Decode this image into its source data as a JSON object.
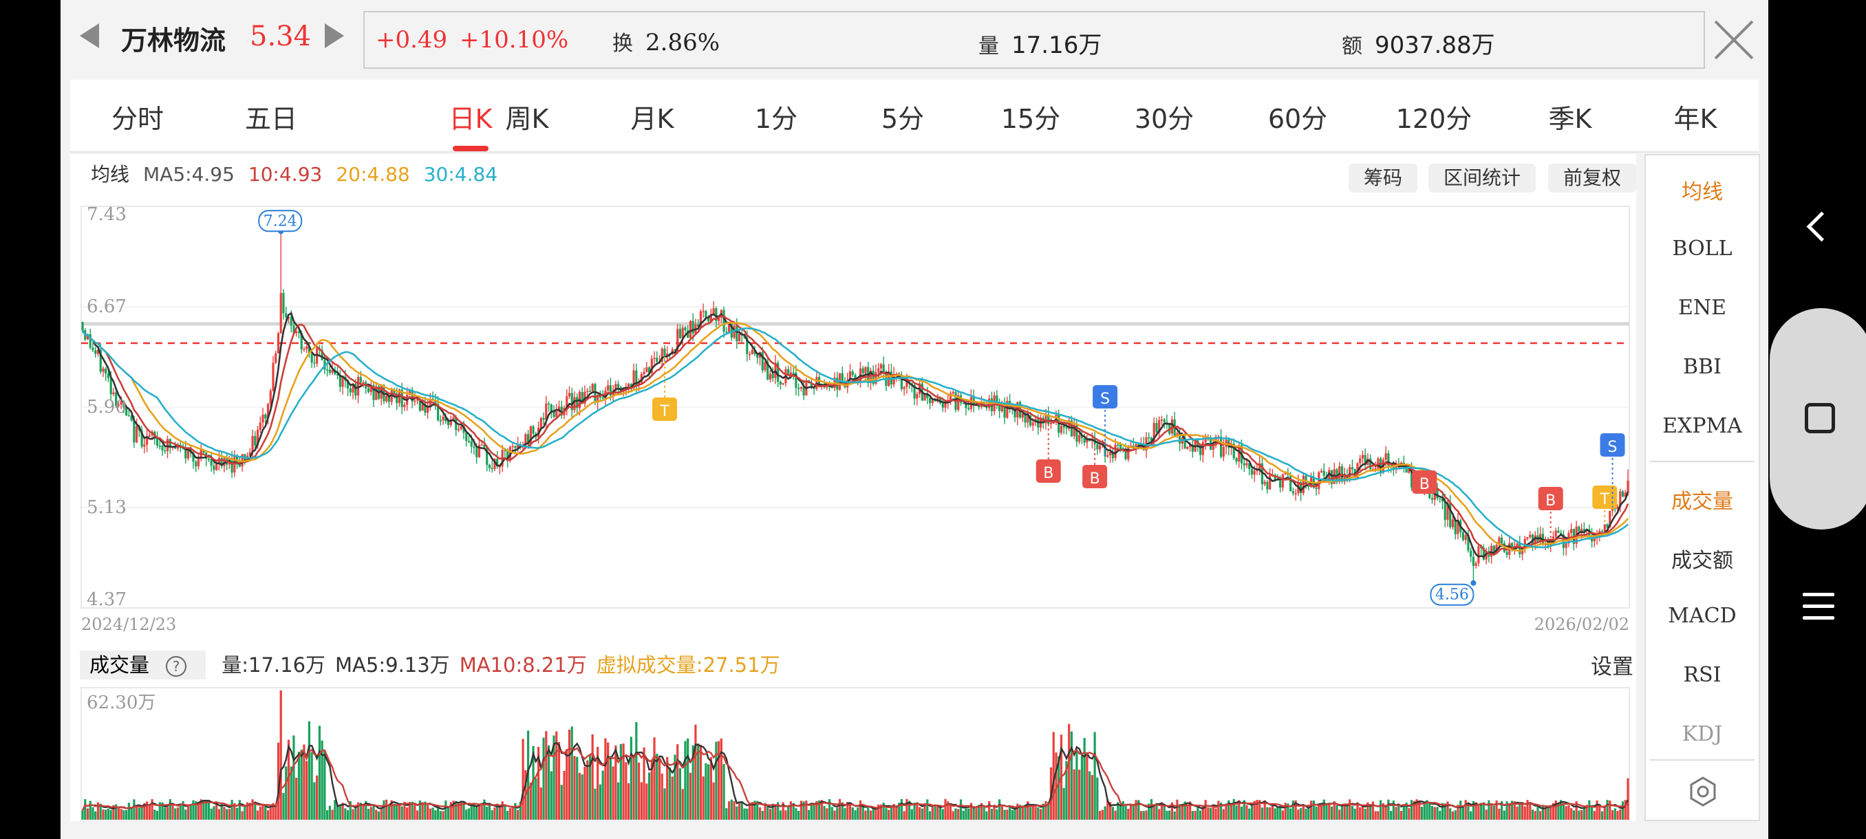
{
  "header": {
    "stock_name": "万林物流",
    "price": "5.34",
    "change": "+0.49",
    "change_pct": "+10.10%",
    "turnover_label": "换",
    "turnover": "2.86%",
    "volume_label": "量",
    "volume": "17.16万",
    "amount_label": "额",
    "amount": "9037.88万"
  },
  "periods": [
    "分时",
    "五日",
    "日K",
    "周K",
    "月K",
    "1分",
    "5分",
    "15分",
    "30分",
    "60分",
    "120分",
    "季K",
    "年K"
  ],
  "active_period": "日K",
  "ma_legend": {
    "label": "均线",
    "ma5": "MA5:4.95",
    "ma10": "10:4.93",
    "ma20": "20:4.88",
    "ma30": "30:4.84"
  },
  "controls": {
    "chips": "筹码",
    "range_stats": "区间统计",
    "adjust": "前复权"
  },
  "price_axis": [
    "7.43",
    "6.67",
    "5.90",
    "5.13",
    "4.37"
  ],
  "dates": {
    "start": "2024/12/23",
    "end": "2026/02/02"
  },
  "annotations": {
    "high": "7.24",
    "low": "4.56",
    "markers": [
      "T",
      "S",
      "B",
      "B",
      "B",
      "B",
      "T",
      "S"
    ]
  },
  "volume": {
    "label": "成交量",
    "help": "?",
    "vol": "量:17.16万",
    "ma5": "MA5:9.13万",
    "ma10": "MA10:8.21万",
    "virtual": "虚拟成交量:27.51万",
    "axis_max": "62.30万",
    "settings": "设置"
  },
  "indicators": {
    "main": [
      "均线",
      "BOLL",
      "ENE",
      "BBI",
      "EXPMA"
    ],
    "sub": [
      "成交量",
      "成交额",
      "MACD",
      "RSI",
      "KDJ"
    ]
  },
  "colors": {
    "up": "#e8413d",
    "down": "#1aa15a",
    "ma5": "#333333",
    "ma10": "#c9403a",
    "ma20": "#e6a21e",
    "ma30": "#28b0c8",
    "accent": "#e07b1a"
  },
  "chart_data": {
    "type": "candlestick",
    "y_range": [
      4.37,
      7.43
    ],
    "period_high": 7.24,
    "period_low": 4.56,
    "last_close": 5.34,
    "volume_max": 62.3
  }
}
